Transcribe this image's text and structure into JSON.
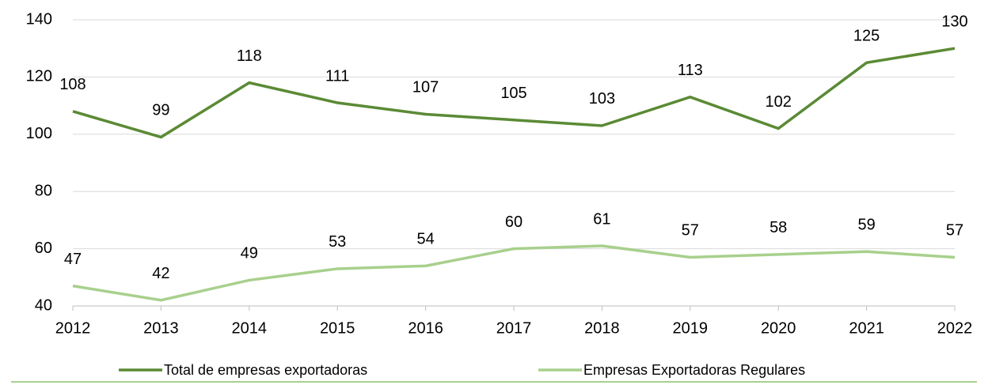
{
  "chart_data": {
    "type": "line",
    "categories": [
      "2012",
      "2013",
      "2014",
      "2015",
      "2016",
      "2017",
      "2018",
      "2019",
      "2020",
      "2021",
      "2022"
    ],
    "series": [
      {
        "name": "Total de empresas exportadoras",
        "color": "#5b8a35",
        "values": [
          108,
          99,
          118,
          111,
          107,
          105,
          103,
          113,
          102,
          125,
          130
        ]
      },
      {
        "name": "Empresas Exportadoras Regulares",
        "color": "#a8d08d",
        "values": [
          47,
          42,
          49,
          53,
          54,
          60,
          61,
          57,
          58,
          59,
          57
        ]
      }
    ],
    "ylim": [
      40,
      140
    ],
    "yticks": [
      40,
      60,
      80,
      100,
      120,
      140
    ],
    "grid": true,
    "legend": "bottom"
  }
}
